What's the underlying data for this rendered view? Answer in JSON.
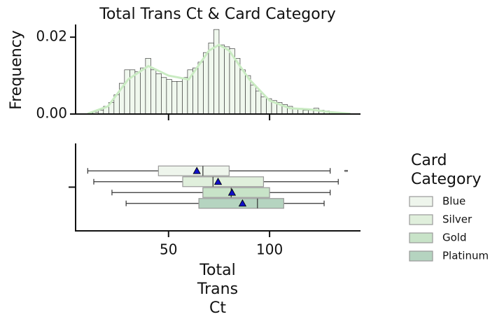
{
  "chart_data": [
    {
      "type": "histogram",
      "title": "Total Trans Ct & Card Category",
      "ylabel": "Frequency",
      "bins": [
        10,
        12.6,
        15.2,
        17.8,
        20.4,
        23,
        25.6,
        28.2,
        30.8,
        33.4,
        36,
        38.6,
        41.2,
        43.8,
        46.4,
        49,
        51.6,
        54.2,
        56.8,
        59.4,
        62,
        64.6,
        67.2,
        69.8,
        72.4,
        75,
        77.6,
        80.2,
        82.8,
        85.4,
        88,
        90.6,
        93.2,
        95.8,
        98.4,
        101,
        103.6,
        106.2,
        108.8,
        111.4,
        114,
        116.6,
        119.2,
        121.8,
        124.4,
        127,
        129.6,
        132.2,
        134.8,
        137.4,
        140
      ],
      "values": [
        0.0002,
        0.0005,
        0.001,
        0.002,
        0.003,
        0.005,
        0.008,
        0.0115,
        0.0115,
        0.011,
        0.012,
        0.0145,
        0.0115,
        0.0105,
        0.0095,
        0.009,
        0.0085,
        0.0085,
        0.0095,
        0.0115,
        0.012,
        0.0135,
        0.016,
        0.0185,
        0.022,
        0.018,
        0.0175,
        0.017,
        0.0145,
        0.0115,
        0.01,
        0.0075,
        0.006,
        0.0045,
        0.004,
        0.0035,
        0.003,
        0.0025,
        0.002,
        0.0015,
        0.0015,
        0.001,
        0.001,
        0.0015,
        0.001,
        0.0008,
        0.0005,
        0.0003,
        0.0001,
        0.0001
      ],
      "color": "#f0f8ee",
      "kde": {
        "color": "#c9ebc2",
        "x": [
          10,
          20,
          30,
          40,
          50,
          60,
          70,
          75,
          80,
          90,
          100,
          110,
          120,
          130,
          140
        ],
        "values": [
          0.0001,
          0.002,
          0.009,
          0.0125,
          0.01,
          0.009,
          0.0165,
          0.018,
          0.0165,
          0.009,
          0.0035,
          0.0015,
          0.0012,
          0.0005,
          0.0001
        ]
      },
      "xlim": [
        4,
        145
      ],
      "ylim": [
        0,
        0.0233
      ],
      "xticks": [
        50,
        100
      ],
      "yticks": [
        {
          "value": 0,
          "label": "0.00"
        },
        {
          "value": 0.02,
          "label": "0.02"
        }
      ]
    },
    {
      "type": "box",
      "xlabel": "Total Trans Ct",
      "legend_title": "Card Category",
      "xlim": [
        4,
        145
      ],
      "xticks": [
        50,
        100
      ],
      "series": [
        {
          "name": "Blue",
          "color": "#eef5ec",
          "whislo": 10,
          "q1": 45,
          "med": 67,
          "q3": 80,
          "whishi": 130,
          "mean": 64,
          "fliers": [
            137.5,
            138.3
          ]
        },
        {
          "name": "Silver",
          "color": "#e0efdc",
          "whislo": 13,
          "q1": 57,
          "med": 72,
          "q3": 97,
          "whishi": 134,
          "mean": 74.5,
          "fliers": []
        },
        {
          "name": "Gold",
          "color": "#c8e3c8",
          "whislo": 22,
          "q1": 67,
          "med": 81,
          "q3": 100,
          "whishi": 130,
          "mean": 81.4,
          "fliers": []
        },
        {
          "name": "Platinum",
          "color": "#b5d4c0",
          "whislo": 29,
          "q1": 65,
          "med": 94,
          "q3": 107,
          "whishi": 127,
          "mean": 86.6,
          "fliers": []
        }
      ]
    }
  ]
}
